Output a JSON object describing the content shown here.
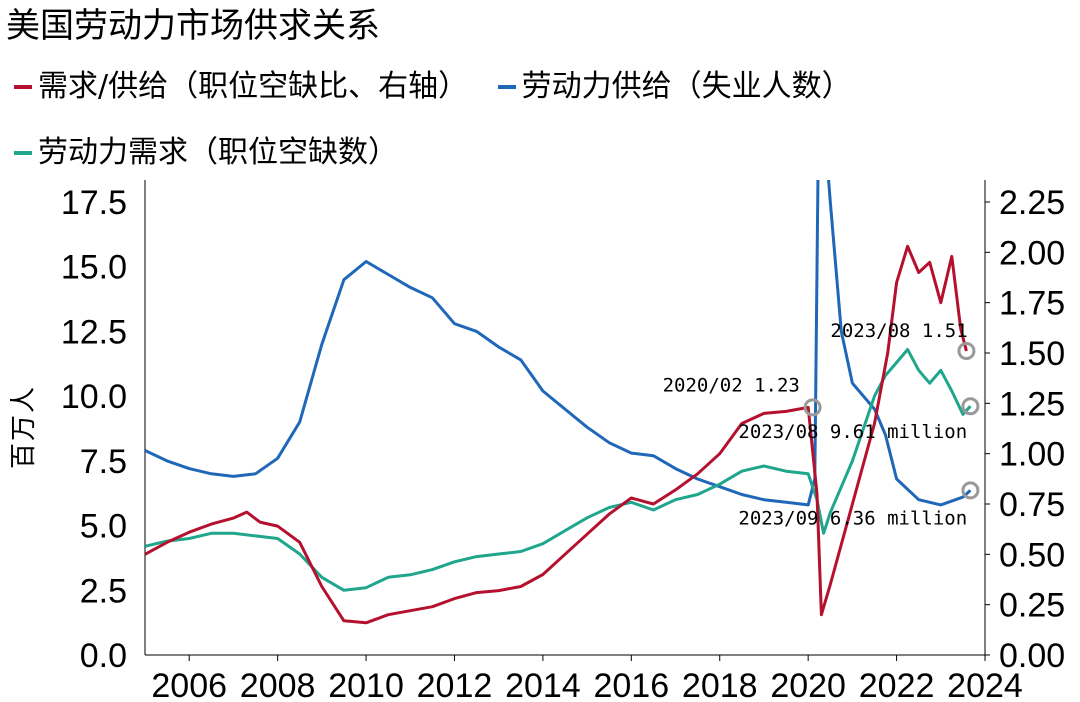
{
  "title": "美国劳动力市场供求关系",
  "colors": {
    "ratio": "#b5112e",
    "supply": "#1f67b8",
    "demand": "#1fa68c",
    "marker": "#999999"
  },
  "chart_data": {
    "type": "line",
    "title": "美国劳动力市场供求关系",
    "ylabel_left": "百万人",
    "ylim_left": [
      0,
      17.5
    ],
    "yticks_left": [
      "0.0",
      "2.5",
      "5.0",
      "7.5",
      "10.0",
      "12.5",
      "15.0",
      "17.5"
    ],
    "ylim_right": [
      0,
      2.25
    ],
    "yticks_right": [
      "0.00",
      "0.25",
      "0.50",
      "0.75",
      "1.00",
      "1.25",
      "1.50",
      "1.75",
      "2.00",
      "2.25"
    ],
    "xlim": [
      2005.0,
      2024.0
    ],
    "xticks": [
      "2006",
      "2008",
      "2010",
      "2012",
      "2014",
      "2016",
      "2018",
      "2020",
      "2022",
      "2024"
    ],
    "grid": false,
    "series": [
      {
        "key": "ratio",
        "name": "需求/供给（职位空缺比、右轴）",
        "axis": "right",
        "points": [
          [
            2005.0,
            0.5
          ],
          [
            2005.5,
            0.56
          ],
          [
            2006.0,
            0.61
          ],
          [
            2006.5,
            0.65
          ],
          [
            2007.0,
            0.68
          ],
          [
            2007.3,
            0.71
          ],
          [
            2007.6,
            0.66
          ],
          [
            2008.0,
            0.64
          ],
          [
            2008.5,
            0.56
          ],
          [
            2009.0,
            0.34
          ],
          [
            2009.5,
            0.17
          ],
          [
            2010.0,
            0.16
          ],
          [
            2010.5,
            0.2
          ],
          [
            2011.0,
            0.22
          ],
          [
            2011.5,
            0.24
          ],
          [
            2012.0,
            0.28
          ],
          [
            2012.5,
            0.31
          ],
          [
            2013.0,
            0.32
          ],
          [
            2013.5,
            0.34
          ],
          [
            2014.0,
            0.4
          ],
          [
            2014.5,
            0.5
          ],
          [
            2015.0,
            0.6
          ],
          [
            2015.5,
            0.7
          ],
          [
            2016.0,
            0.78
          ],
          [
            2016.5,
            0.75
          ],
          [
            2017.0,
            0.82
          ],
          [
            2017.5,
            0.9
          ],
          [
            2018.0,
            1.0
          ],
          [
            2018.5,
            1.15
          ],
          [
            2019.0,
            1.2
          ],
          [
            2019.5,
            1.21
          ],
          [
            2020.0,
            1.23
          ],
          [
            2020.2,
            0.8
          ],
          [
            2020.3,
            0.2
          ],
          [
            2020.5,
            0.35
          ],
          [
            2021.0,
            0.75
          ],
          [
            2021.5,
            1.15
          ],
          [
            2021.8,
            1.5
          ],
          [
            2022.0,
            1.85
          ],
          [
            2022.25,
            2.03
          ],
          [
            2022.5,
            1.9
          ],
          [
            2022.75,
            1.95
          ],
          [
            2023.0,
            1.75
          ],
          [
            2023.25,
            1.98
          ],
          [
            2023.45,
            1.62
          ],
          [
            2023.58,
            1.51
          ]
        ]
      },
      {
        "key": "supply",
        "name": "劳动力供给（失业人数）",
        "axis": "left",
        "points": [
          [
            2005.0,
            7.9
          ],
          [
            2005.5,
            7.5
          ],
          [
            2006.0,
            7.2
          ],
          [
            2006.5,
            7.0
          ],
          [
            2007.0,
            6.9
          ],
          [
            2007.5,
            7.0
          ],
          [
            2008.0,
            7.6
          ],
          [
            2008.5,
            9.0
          ],
          [
            2009.0,
            12.0
          ],
          [
            2009.5,
            14.5
          ],
          [
            2010.0,
            15.2
          ],
          [
            2010.5,
            14.7
          ],
          [
            2011.0,
            14.2
          ],
          [
            2011.5,
            13.8
          ],
          [
            2012.0,
            12.8
          ],
          [
            2012.5,
            12.5
          ],
          [
            2013.0,
            11.9
          ],
          [
            2013.5,
            11.4
          ],
          [
            2014.0,
            10.2
          ],
          [
            2014.5,
            9.5
          ],
          [
            2015.0,
            8.8
          ],
          [
            2015.5,
            8.2
          ],
          [
            2016.0,
            7.8
          ],
          [
            2016.5,
            7.7
          ],
          [
            2017.0,
            7.2
          ],
          [
            2017.5,
            6.8
          ],
          [
            2018.0,
            6.5
          ],
          [
            2018.5,
            6.2
          ],
          [
            2019.0,
            6.0
          ],
          [
            2019.5,
            5.9
          ],
          [
            2020.0,
            5.8
          ],
          [
            2020.15,
            6.8
          ],
          [
            2020.25,
            23.0
          ],
          [
            2020.5,
            17.5
          ],
          [
            2020.75,
            12.5
          ],
          [
            2021.0,
            10.5
          ],
          [
            2021.5,
            9.5
          ],
          [
            2021.75,
            8.5
          ],
          [
            2022.0,
            6.8
          ],
          [
            2022.5,
            6.0
          ],
          [
            2023.0,
            5.8
          ],
          [
            2023.5,
            6.1
          ],
          [
            2023.67,
            6.36
          ]
        ]
      },
      {
        "key": "demand",
        "name": "劳动力需求（职位空缺数）",
        "axis": "left",
        "points": [
          [
            2005.0,
            4.2
          ],
          [
            2005.5,
            4.4
          ],
          [
            2006.0,
            4.5
          ],
          [
            2006.5,
            4.7
          ],
          [
            2007.0,
            4.7
          ],
          [
            2007.5,
            4.6
          ],
          [
            2008.0,
            4.5
          ],
          [
            2008.5,
            3.9
          ],
          [
            2009.0,
            3.0
          ],
          [
            2009.5,
            2.5
          ],
          [
            2010.0,
            2.6
          ],
          [
            2010.5,
            3.0
          ],
          [
            2011.0,
            3.1
          ],
          [
            2011.5,
            3.3
          ],
          [
            2012.0,
            3.6
          ],
          [
            2012.5,
            3.8
          ],
          [
            2013.0,
            3.9
          ],
          [
            2013.5,
            4.0
          ],
          [
            2014.0,
            4.3
          ],
          [
            2014.5,
            4.8
          ],
          [
            2015.0,
            5.3
          ],
          [
            2015.5,
            5.7
          ],
          [
            2016.0,
            5.9
          ],
          [
            2016.5,
            5.6
          ],
          [
            2017.0,
            6.0
          ],
          [
            2017.5,
            6.2
          ],
          [
            2018.0,
            6.6
          ],
          [
            2018.5,
            7.1
          ],
          [
            2019.0,
            7.3
          ],
          [
            2019.5,
            7.1
          ],
          [
            2020.0,
            7.0
          ],
          [
            2020.2,
            6.0
          ],
          [
            2020.35,
            4.7
          ],
          [
            2020.5,
            5.5
          ],
          [
            2021.0,
            7.5
          ],
          [
            2021.5,
            10.0
          ],
          [
            2021.75,
            10.8
          ],
          [
            2022.0,
            11.3
          ],
          [
            2022.25,
            11.8
          ],
          [
            2022.5,
            11.0
          ],
          [
            2022.75,
            10.5
          ],
          [
            2023.0,
            11.0
          ],
          [
            2023.25,
            10.2
          ],
          [
            2023.5,
            9.3
          ],
          [
            2023.67,
            9.61
          ]
        ]
      }
    ],
    "annotations": [
      {
        "text": "2020/02 1.23",
        "point": [
          2020.1,
          1.23
        ],
        "axis": "right"
      },
      {
        "text": "2023/08 1.51",
        "point": [
          2023.58,
          1.51
        ],
        "axis": "right"
      },
      {
        "text": "2023/08 9.61 million",
        "point": [
          2023.67,
          9.61
        ],
        "axis": "left"
      },
      {
        "text": "2023/09 6.36 million",
        "point": [
          2023.67,
          6.36
        ],
        "axis": "left"
      }
    ]
  }
}
